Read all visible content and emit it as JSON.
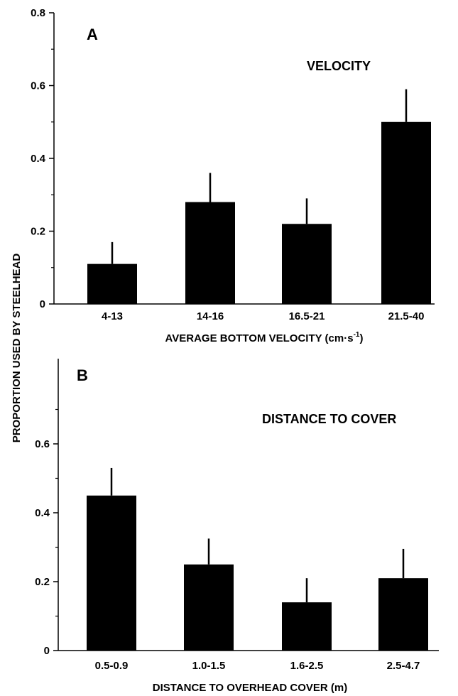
{
  "y_axis_label": "PROPORTION USED BY STEELHEAD",
  "chart_data": [
    {
      "type": "bar",
      "panel_letter": "A",
      "title": "VELOCITY",
      "xlabel_main": "AVERAGE BOTTOM VELOCITY (cm·s",
      "xlabel_sup": "-1",
      "xlabel_tail": ")",
      "ylabel": "PROPORTION USED BY STEELHEAD",
      "categories": [
        "4-13",
        "14-16",
        "16.5-21",
        "21.5-40"
      ],
      "values": [
        0.11,
        0.28,
        0.22,
        0.5
      ],
      "errors": [
        0.06,
        0.08,
        0.07,
        0.09
      ],
      "ylim": [
        0,
        0.8
      ],
      "yticks": [
        0,
        0.2,
        0.4,
        0.6,
        0.8
      ],
      "ytick_labels": [
        "0",
        "0.2",
        "0.4",
        "0.6",
        "0.8"
      ],
      "minor_ticks": [
        0.1,
        0.3,
        0.5,
        0.7
      ],
      "grid": false,
      "bar_color": "#000000"
    },
    {
      "type": "bar",
      "panel_letter": "B",
      "title": "DISTANCE TO COVER",
      "xlabel_main": "DISTANCE TO OVERHEAD COVER (m)",
      "xlabel_sup": "",
      "xlabel_tail": "",
      "ylabel": "PROPORTION USED BY STEELHEAD",
      "categories": [
        "0.5-0.9",
        "1.0-1.5",
        "1.6-2.5",
        "2.5-4.7"
      ],
      "values": [
        0.45,
        0.25,
        0.14,
        0.21
      ],
      "errors": [
        0.08,
        0.075,
        0.07,
        0.085
      ],
      "ylim": [
        0,
        0.75
      ],
      "yticks": [
        0,
        0.2,
        0.4,
        0.6
      ],
      "ytick_labels": [
        "0",
        "0.2",
        "0.4",
        "0.6"
      ],
      "minor_ticks": [
        0.1,
        0.3,
        0.5,
        0.7
      ],
      "grid": false,
      "bar_color": "#000000"
    }
  ]
}
